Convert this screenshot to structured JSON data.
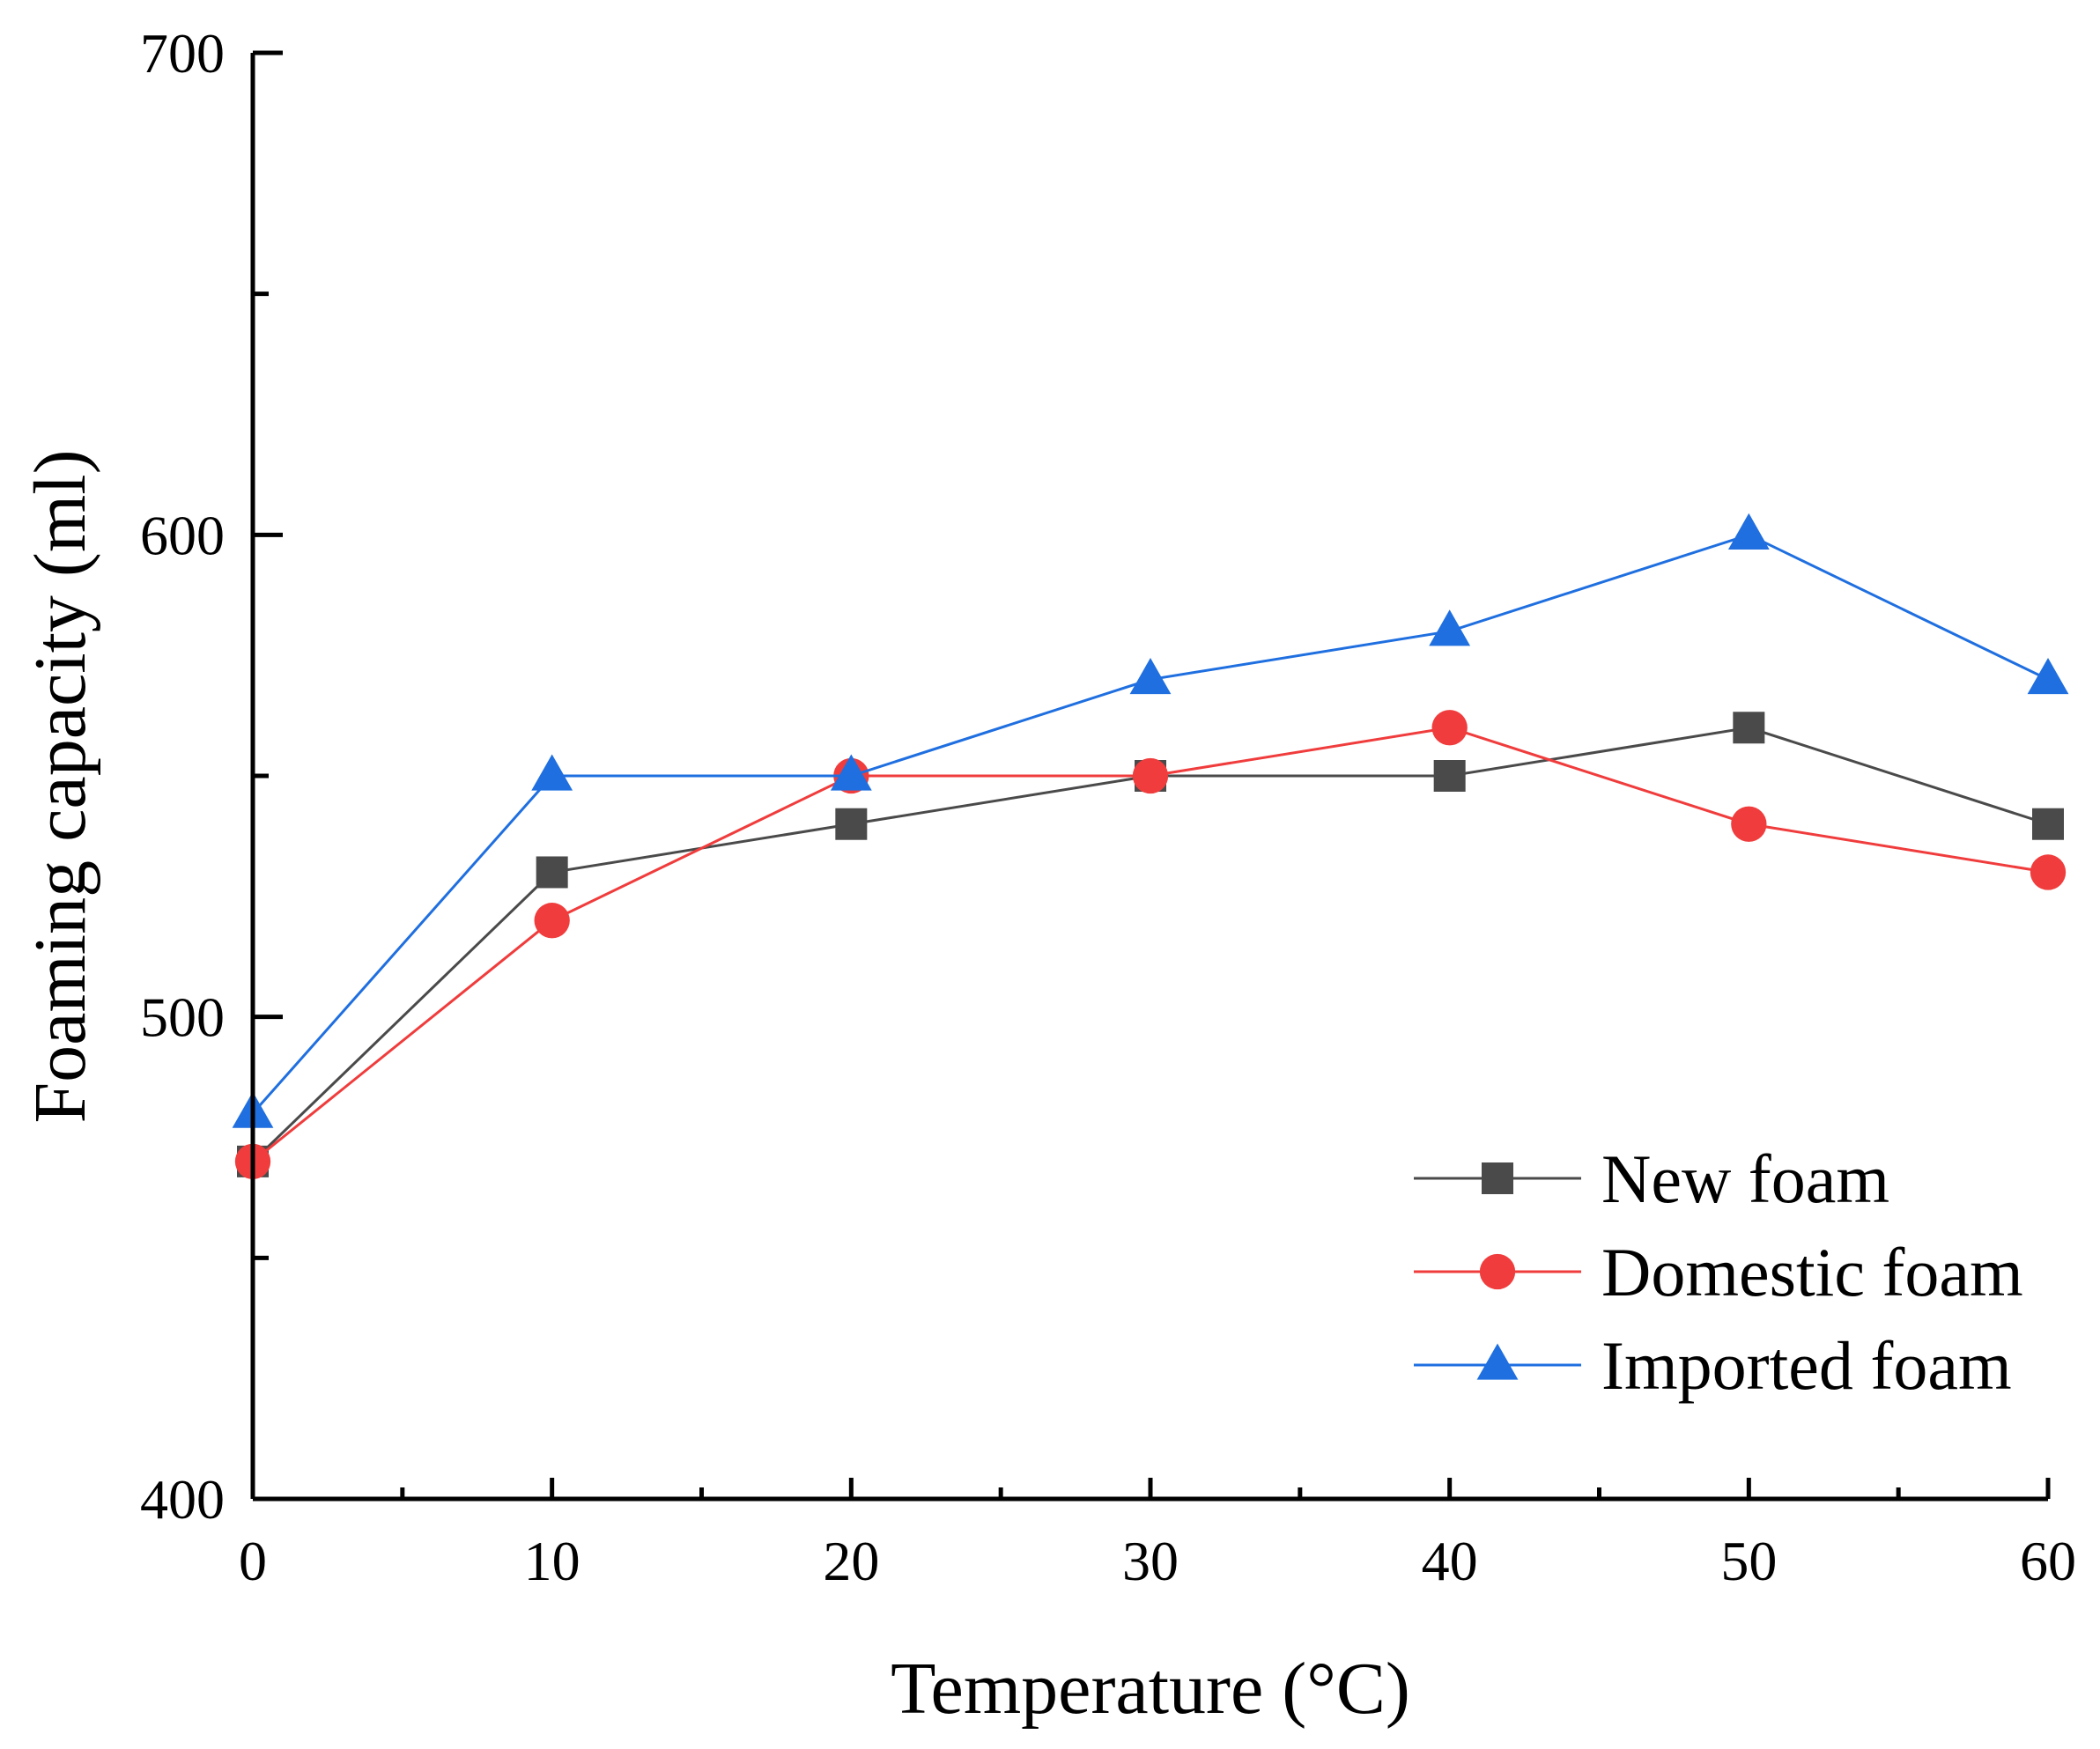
{
  "chart_data": {
    "type": "line",
    "title": "",
    "xlabel": "Temperature (°C)",
    "ylabel": "Foaming capacity (ml)",
    "xlim": [
      0,
      60
    ],
    "ylim": [
      400,
      700
    ],
    "x_major_ticks": [
      0,
      10,
      20,
      30,
      40,
      50,
      60
    ],
    "x_minor_ticks": [
      5,
      15,
      25,
      35,
      45,
      55
    ],
    "y_major_ticks": [
      400,
      500,
      600,
      700
    ],
    "y_minor_ticks": [
      450,
      550,
      650
    ],
    "x_tick_labels": [
      "0",
      "10",
      "20",
      "30",
      "40",
      "50",
      "60"
    ],
    "y_tick_labels": [
      "400",
      "500",
      "600",
      "700"
    ],
    "grid": false,
    "legend_position": "bottom-right",
    "x": [
      0,
      10,
      20,
      30,
      40,
      50,
      60
    ],
    "series": [
      {
        "name": "New foam",
        "values": [
          470,
          530,
          540,
          550,
          550,
          560,
          540
        ],
        "color": "#4a4a4a",
        "marker": "square"
      },
      {
        "name": "Domestic foam",
        "values": [
          470,
          520,
          550,
          550,
          560,
          540,
          530
        ],
        "color": "#f03c3c",
        "marker": "circle"
      },
      {
        "name": "Imported foam",
        "values": [
          480,
          550,
          550,
          570,
          580,
          600,
          570
        ],
        "color": "#1f6fe0",
        "marker": "triangle"
      }
    ]
  }
}
